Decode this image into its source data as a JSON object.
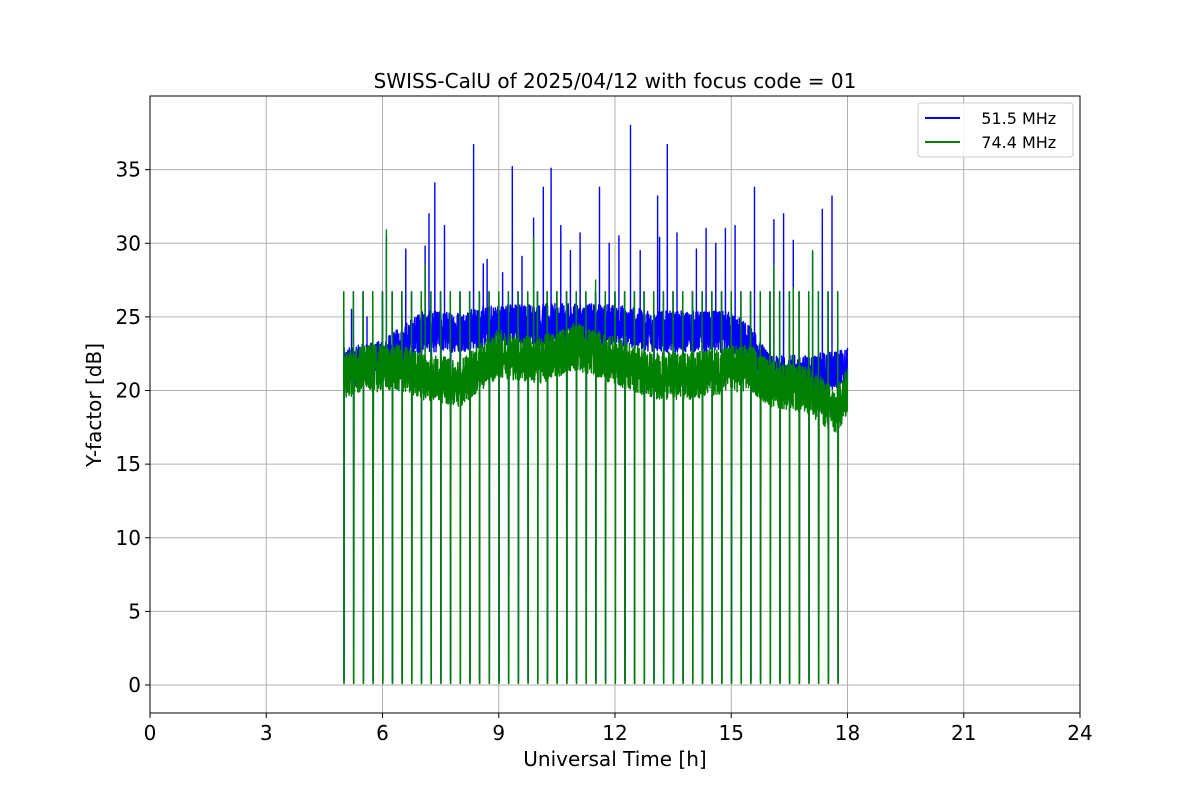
{
  "chart_data": {
    "type": "line",
    "title": "SWISS-CalU of 2025/04/12 with focus code = 01",
    "xlabel": "Universal Time [h]",
    "ylabel": "Y-factor [dB]",
    "xlim": [
      0,
      24
    ],
    "ylim": [
      -1.9,
      40
    ],
    "x_ticks": [
      0,
      3,
      6,
      9,
      12,
      15,
      18,
      21,
      24
    ],
    "x_tick_labels": [
      "0",
      "3",
      "6",
      "9",
      "12",
      "15",
      "18",
      "21",
      "24"
    ],
    "y_ticks": [
      0,
      5,
      10,
      15,
      20,
      25,
      30,
      35
    ],
    "y_tick_labels": [
      "0",
      "5",
      "10",
      "15",
      "20",
      "25",
      "30",
      "35"
    ],
    "grid": true,
    "legend_position": "top-right",
    "data_start_hour": 5.0,
    "data_end_hour": 18.0,
    "calibration_dips": {
      "interval_h": 0.25,
      "dip_value_db": 0,
      "peak_value_db": 26.7
    },
    "series": [
      {
        "name": "   51.5 MHz",
        "color": "#0000ff",
        "baseline": [
          [
            5.0,
            21.5
          ],
          [
            6.0,
            22.0
          ],
          [
            7.0,
            24.0
          ],
          [
            8.0,
            24.0
          ],
          [
            9.0,
            24.5
          ],
          [
            10.0,
            24.5
          ],
          [
            11.0,
            24.5
          ],
          [
            12.0,
            24.5
          ],
          [
            13.0,
            24.0
          ],
          [
            14.0,
            24.0
          ],
          [
            15.0,
            24.0
          ],
          [
            15.5,
            23.0
          ],
          [
            16.0,
            21.0
          ],
          [
            17.0,
            21.0
          ],
          [
            18.0,
            21.5
          ]
        ],
        "spikes": [
          [
            5.2,
            25.5
          ],
          [
            5.6,
            25.0
          ],
          [
            6.1,
            30.5
          ],
          [
            6.6,
            29.6
          ],
          [
            7.1,
            29.8
          ],
          [
            7.2,
            32.0
          ],
          [
            7.35,
            34.1
          ],
          [
            7.6,
            31.2
          ],
          [
            8.35,
            36.7
          ],
          [
            8.6,
            28.6
          ],
          [
            8.7,
            28.9
          ],
          [
            9.1,
            28.0
          ],
          [
            9.35,
            35.2
          ],
          [
            9.6,
            29.1
          ],
          [
            9.9,
            31.7
          ],
          [
            10.15,
            33.8
          ],
          [
            10.35,
            35.1
          ],
          [
            10.6,
            31.2
          ],
          [
            10.85,
            29.5
          ],
          [
            11.1,
            30.7
          ],
          [
            11.6,
            33.8
          ],
          [
            11.85,
            30.0
          ],
          [
            12.1,
            30.5
          ],
          [
            12.4,
            38.0
          ],
          [
            12.65,
            29.5
          ],
          [
            13.1,
            33.2
          ],
          [
            13.15,
            30.4
          ],
          [
            13.35,
            36.7
          ],
          [
            13.6,
            30.7
          ],
          [
            14.1,
            29.6
          ],
          [
            14.35,
            31.0
          ],
          [
            14.6,
            30.0
          ],
          [
            14.85,
            31.0
          ],
          [
            15.1,
            31.2
          ],
          [
            15.6,
            33.8
          ],
          [
            16.1,
            31.6
          ],
          [
            16.35,
            32.0
          ],
          [
            16.6,
            30.2
          ],
          [
            17.1,
            29.4
          ],
          [
            17.35,
            32.3
          ],
          [
            17.6,
            33.2
          ]
        ]
      },
      {
        "name": "   74.4 MHz",
        "color": "#008000",
        "baseline": [
          [
            5.0,
            21.0
          ],
          [
            5.5,
            21.5
          ],
          [
            6.0,
            21.5
          ],
          [
            6.5,
            21.5
          ],
          [
            7.0,
            21.0
          ],
          [
            8.0,
            20.5
          ],
          [
            9.0,
            22.5
          ],
          [
            10.0,
            22.0
          ],
          [
            11.0,
            23.0
          ],
          [
            12.0,
            22.0
          ],
          [
            13.0,
            21.0
          ],
          [
            14.0,
            21.0
          ],
          [
            15.0,
            21.5
          ],
          [
            15.5,
            21.5
          ],
          [
            16.0,
            20.5
          ],
          [
            17.0,
            20.0
          ],
          [
            17.7,
            18.5
          ],
          [
            18.0,
            20.0
          ]
        ],
        "spikes": [
          [
            6.1,
            30.9
          ],
          [
            7.1,
            28.6
          ],
          [
            9.9,
            30.4
          ],
          [
            11.5,
            27.5
          ],
          [
            16.1,
            28.5
          ],
          [
            16.6,
            27.0
          ],
          [
            17.1,
            29.5
          ]
        ]
      }
    ]
  }
}
